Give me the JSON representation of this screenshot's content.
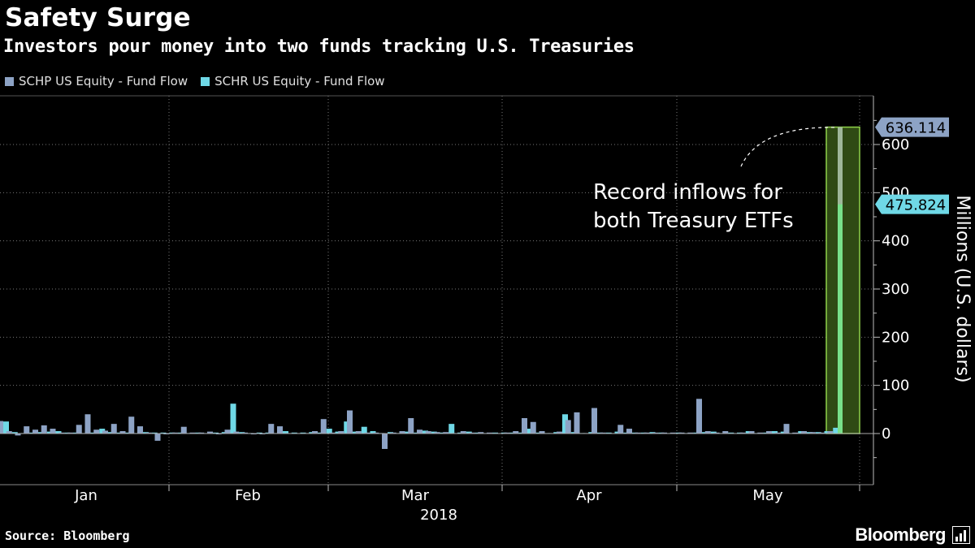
{
  "header": {
    "title": "Safety Surge",
    "subtitle": "Investors pour money into two funds tracking U.S. Treasuries"
  },
  "footer": {
    "source": "Source: Bloomberg",
    "brand": "Bloomberg"
  },
  "icons": {
    "brand_mark": "bloomberg-terminal-icon"
  },
  "chart_data": {
    "type": "bar",
    "title": "Safety Surge",
    "subtitle": "Investors pour money into two funds tracking U.S. Treasuries",
    "ylabel": "Millions (U.S. dollars)",
    "xlabel": "2018",
    "ylim": [
      -100,
      700
    ],
    "yticks": [
      0,
      100,
      200,
      300,
      400,
      500,
      600
    ],
    "month_labels": [
      "Jan",
      "Feb",
      "Mar",
      "Apr",
      "May"
    ],
    "legend_position": "top-left",
    "grid": true,
    "colors": {
      "SCHP": "#8da3c5",
      "SCHR": "#6fd8e6",
      "highlight": "#8fd34a"
    },
    "series": [
      {
        "name": "SCHP US Equity - Fund Flow",
        "values": [
          26,
          5,
          -4,
          15,
          8,
          17,
          10,
          2,
          2,
          18,
          40,
          8,
          6,
          20,
          5,
          35,
          15,
          2,
          -15,
          0,
          2,
          14,
          2,
          2,
          4,
          0,
          8,
          4,
          2,
          -1,
          -1,
          20,
          15,
          1,
          1,
          1,
          5,
          30,
          2,
          5,
          48,
          5,
          2,
          2,
          -32,
          2,
          5,
          32,
          8,
          5,
          3,
          3,
          1,
          5,
          2,
          3,
          2,
          1,
          2,
          5,
          32,
          24,
          5,
          1,
          4,
          28,
          44,
          1,
          53,
          2,
          1,
          18,
          10,
          2,
          2,
          2,
          2,
          2,
          2,
          2,
          72,
          5,
          2,
          5,
          1,
          2,
          5,
          2,
          5,
          2,
          20,
          2,
          5,
          3,
          2,
          5,
          636.114
        ]
      },
      {
        "name": "SCHR US Equity - Fund Flow",
        "values": [
          25,
          3,
          1,
          2,
          3,
          4,
          5,
          2,
          2,
          1,
          2,
          10,
          3,
          2,
          2,
          1,
          3,
          2,
          2,
          2,
          2,
          1,
          2,
          1,
          2,
          3,
          62,
          3,
          1,
          2,
          2,
          1,
          5,
          2,
          2,
          3,
          2,
          10,
          4,
          25,
          4,
          14,
          5,
          1,
          3,
          1,
          4,
          2,
          6,
          4,
          2,
          20,
          2,
          4,
          2,
          1,
          2,
          2,
          2,
          2,
          10,
          2,
          1,
          3,
          40,
          3,
          1,
          3,
          2,
          2,
          4,
          2,
          2,
          2,
          3,
          2,
          1,
          2,
          1,
          2,
          3,
          4,
          1,
          2,
          2,
          5,
          1,
          2,
          5,
          4,
          1,
          5,
          3,
          3,
          5,
          12,
          475.824
        ]
      }
    ],
    "callouts": [
      {
        "label": "636.114",
        "series": "SCHP"
      },
      {
        "label": "475.824",
        "series": "SCHR"
      }
    ],
    "annotation": "Record inflows for both Treasury ETFs"
  }
}
